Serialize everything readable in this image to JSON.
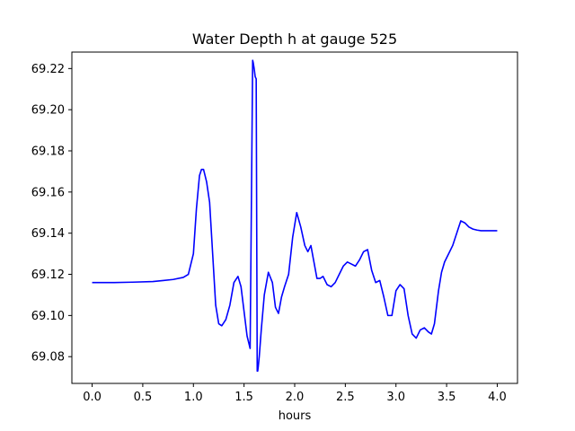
{
  "chart_data": {
    "type": "line",
    "title": "Water Depth h at gauge 525",
    "xlabel": "hours",
    "ylabel": "",
    "xlim": [
      -0.2,
      4.2
    ],
    "ylim": [
      69.067,
      69.228
    ],
    "xticks": [
      0.0,
      0.5,
      1.0,
      1.5,
      2.0,
      2.5,
      3.0,
      3.5,
      4.0
    ],
    "xtick_labels": [
      "0.0",
      "0.5",
      "1.0",
      "1.5",
      "2.0",
      "2.5",
      "3.0",
      "3.5",
      "4.0"
    ],
    "yticks": [
      69.08,
      69.1,
      69.12,
      69.14,
      69.16,
      69.18,
      69.2,
      69.22
    ],
    "ytick_labels": [
      "69.08",
      "69.10",
      "69.12",
      "69.14",
      "69.16",
      "69.18",
      "69.20",
      "69.22"
    ],
    "grid": false,
    "line_color": "#0000ff",
    "series": [
      {
        "x": [
          0.0,
          0.2,
          0.4,
          0.6,
          0.7,
          0.8,
          0.9,
          0.95,
          1.0,
          1.03,
          1.06,
          1.08,
          1.1,
          1.13,
          1.16,
          1.19,
          1.22,
          1.25,
          1.28,
          1.32,
          1.36,
          1.4,
          1.44,
          1.47,
          1.5,
          1.53,
          1.56,
          1.585,
          1.59,
          1.6,
          1.61,
          1.62,
          1.63,
          1.635,
          1.64,
          1.65,
          1.67,
          1.7,
          1.74,
          1.78,
          1.81,
          1.84,
          1.87,
          1.9,
          1.94,
          1.98,
          2.02,
          2.06,
          2.1,
          2.13,
          2.16,
          2.19,
          2.22,
          2.25,
          2.28,
          2.32,
          2.36,
          2.4,
          2.44,
          2.48,
          2.52,
          2.56,
          2.6,
          2.64,
          2.68,
          2.72,
          2.76,
          2.8,
          2.84,
          2.88,
          2.92,
          2.96,
          3.0,
          3.04,
          3.08,
          3.12,
          3.16,
          3.2,
          3.24,
          3.28,
          3.32,
          3.35,
          3.38,
          3.42,
          3.45,
          3.48,
          3.52,
          3.56,
          3.6,
          3.64,
          3.68,
          3.72,
          3.76,
          3.8,
          3.84,
          3.88,
          3.91,
          3.94,
          3.97,
          4.0
        ],
        "y": [
          69.116,
          69.116,
          69.1162,
          69.1165,
          69.117,
          69.1175,
          69.1185,
          69.12,
          69.13,
          69.152,
          69.168,
          69.171,
          69.171,
          69.165,
          69.155,
          69.13,
          69.105,
          69.096,
          69.095,
          69.098,
          69.105,
          69.116,
          69.119,
          69.114,
          69.102,
          69.09,
          69.084,
          69.224,
          69.223,
          69.22,
          69.216,
          69.215,
          69.073,
          69.073,
          69.075,
          69.08,
          69.093,
          69.11,
          69.121,
          69.116,
          69.104,
          69.101,
          69.109,
          69.114,
          69.12,
          69.138,
          69.15,
          69.143,
          69.134,
          69.131,
          69.134,
          69.126,
          69.118,
          69.118,
          69.119,
          69.115,
          69.114,
          69.116,
          69.12,
          69.124,
          69.126,
          69.125,
          69.124,
          69.127,
          69.131,
          69.132,
          69.122,
          69.116,
          69.117,
          69.109,
          69.1,
          69.1,
          69.112,
          69.115,
          69.113,
          69.1,
          69.091,
          69.089,
          69.093,
          69.094,
          69.092,
          69.091,
          69.096,
          69.112,
          69.121,
          69.126,
          69.13,
          69.134,
          69.14,
          69.146,
          69.145,
          69.143,
          69.142,
          69.1415,
          69.1412,
          69.1412,
          69.1412,
          69.1412,
          69.1412,
          69.1412
        ]
      }
    ]
  }
}
